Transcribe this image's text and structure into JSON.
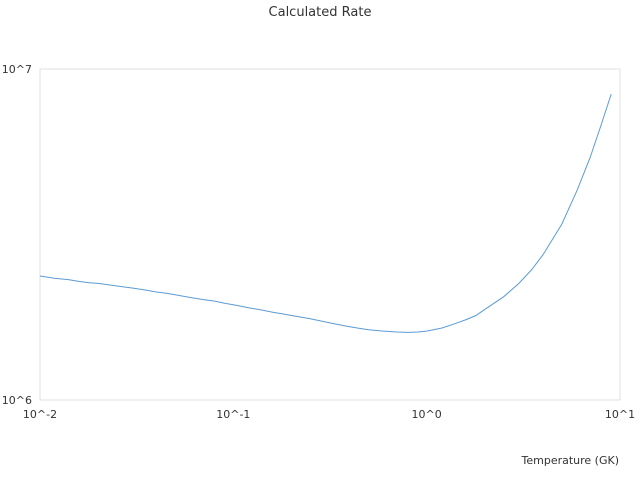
{
  "chart_data": {
    "type": "line",
    "title": "Calculated Rate",
    "xlabel": "Temperature (GK)",
    "ylabel": "",
    "xscale": "log",
    "yscale": "log",
    "xlim": [
      0.01,
      10
    ],
    "ylim": [
      1000000,
      10000000
    ],
    "x_tick_labels": [
      "10^-2",
      "10^-1",
      "10^0",
      "10^1"
    ],
    "y_tick_labels": [
      "10^6",
      "10^7"
    ],
    "grid": false,
    "legend": "none",
    "line_color": "#5b9bd5",
    "series": [
      {
        "x": [
          0.01,
          0.011,
          0.012,
          0.014,
          0.016,
          0.018,
          0.02,
          0.025,
          0.03,
          0.035,
          0.04,
          0.045,
          0.05,
          0.06,
          0.07,
          0.08,
          0.09,
          0.1,
          0.12,
          0.14,
          0.16,
          0.18,
          0.2,
          0.25,
          0.3,
          0.35,
          0.4,
          0.45,
          0.5,
          0.6,
          0.7,
          0.8,
          0.9,
          1.0,
          1.2,
          1.4,
          1.6,
          1.8,
          2.0,
          2.5,
          3.0,
          3.5,
          4.0,
          5.0,
          6.0,
          7.0,
          8.0,
          9.0
        ],
        "y": [
          2370000,
          2350000,
          2330000,
          2310000,
          2280000,
          2260000,
          2250000,
          2210000,
          2180000,
          2150000,
          2120000,
          2100000,
          2080000,
          2040000,
          2010000,
          1990000,
          1960000,
          1940000,
          1900000,
          1870000,
          1840000,
          1820000,
          1800000,
          1760000,
          1720000,
          1690000,
          1665000,
          1645000,
          1630000,
          1615000,
          1605000,
          1600000,
          1605000,
          1615000,
          1650000,
          1700000,
          1750000,
          1800000,
          1880000,
          2050000,
          2250000,
          2480000,
          2750000,
          3400000,
          4300000,
          5400000,
          6800000,
          8400000
        ]
      }
    ]
  }
}
